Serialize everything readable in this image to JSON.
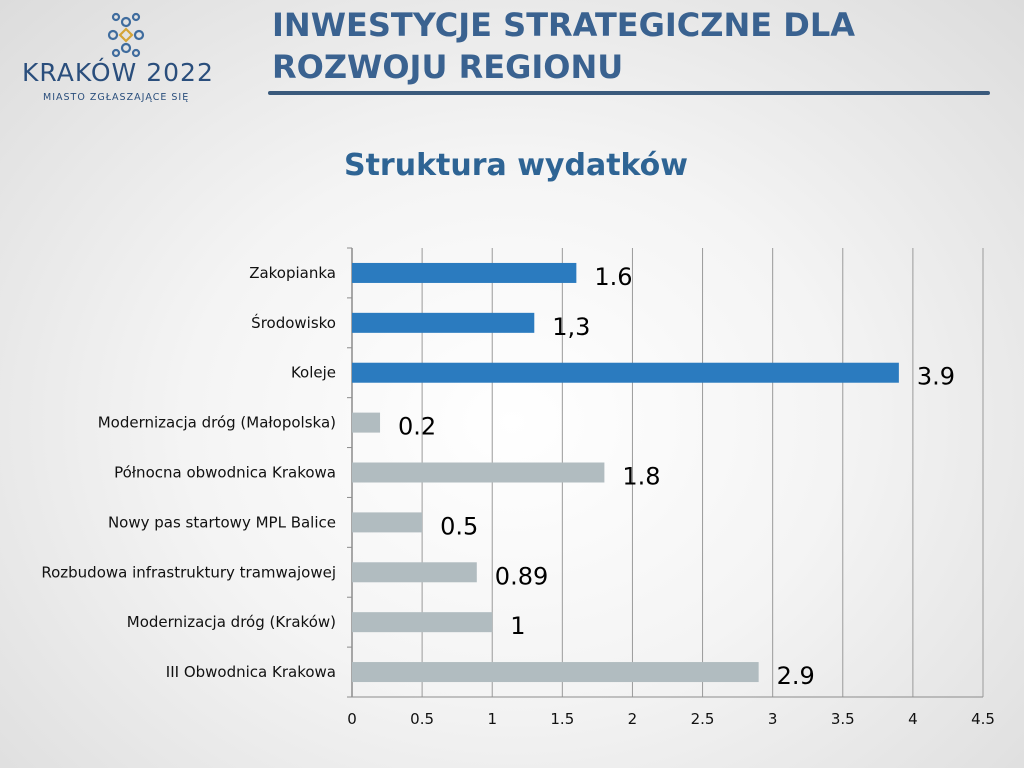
{
  "logo": {
    "name": "KRAKÓW 2022",
    "tagline": "MIASTO ZGŁASZAJĄCE SIĘ"
  },
  "slide": {
    "title": "INWESTYCJE STRATEGICZNE DLA ROZWOJU REGIONU"
  },
  "chart_data": {
    "type": "bar",
    "orientation": "horizontal",
    "title": "Struktura wydatków",
    "categories": [
      "Zakopianka",
      "Środowisko",
      "Koleje",
      "Modernizacja dróg (Małopolska)",
      "Północna obwodnica Krakowa",
      "Nowy pas startowy MPL Balice",
      "Rozbudowa infrastruktury tramwajowej",
      "Modernizacja dróg (Kraków)",
      "III Obwodnica Krakowa"
    ],
    "values": [
      1.6,
      1.3,
      3.9,
      0.2,
      1.8,
      0.5,
      0.89,
      1,
      2.9
    ],
    "data_labels": [
      "1.6",
      "1,3",
      "3.9",
      "0.2",
      "1.8",
      "0.5",
      "0.89",
      "1",
      "2.9"
    ],
    "bar_colors": [
      "#2b7bbf",
      "#2b7bbf",
      "#2b7bbf",
      "#b1bcc0",
      "#b1bcc0",
      "#b1bcc0",
      "#b1bcc0",
      "#b1bcc0",
      "#b1bcc0"
    ],
    "xlim": [
      0,
      4.5
    ],
    "xticks": [
      "0",
      "0.5",
      "1",
      "1.5",
      "2",
      "2.5",
      "3",
      "3.5",
      "4",
      "4.5"
    ],
    "grid": "vertical",
    "legend": "none"
  },
  "colors": {
    "accent_blue": "#2b7bbf",
    "bar_grey": "#b1bcc0",
    "title_blue": "#3a6290",
    "gridline": "#9a9a9a"
  }
}
